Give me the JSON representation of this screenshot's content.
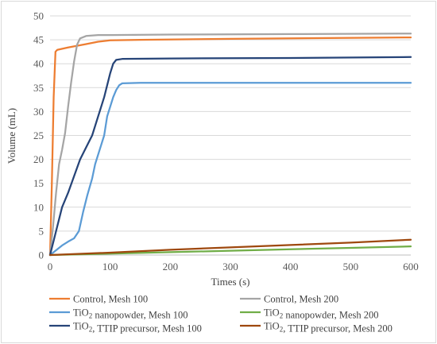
{
  "chart_data": {
    "type": "line",
    "title": "",
    "xlabel": "Times (s)",
    "ylabel": "Volume (mL)",
    "xlim": [
      0,
      600
    ],
    "ylim": [
      0,
      50
    ],
    "xticks": [
      0,
      100,
      200,
      300,
      400,
      500,
      600
    ],
    "yticks": [
      0,
      5,
      10,
      15,
      20,
      25,
      30,
      35,
      40,
      45,
      50
    ],
    "grid": "horizontal",
    "legend_position": "bottom",
    "series": [
      {
        "name": "Control, Mesh 100",
        "legend_parts": [
          {
            "t": "Control, Mesh 100"
          }
        ],
        "color": "#ED7D31",
        "points": [
          [
            0,
            0
          ],
          [
            3,
            15
          ],
          [
            6,
            33
          ],
          [
            9,
            42.5
          ],
          [
            12,
            42.9
          ],
          [
            30,
            43.4
          ],
          [
            60,
            44.1
          ],
          [
            80,
            44.6
          ],
          [
            100,
            44.9
          ],
          [
            150,
            45.0
          ],
          [
            300,
            45.2
          ],
          [
            600,
            45.5
          ]
        ]
      },
      {
        "name": "Control, Mesh 200",
        "legend_parts": [
          {
            "t": "Control, Mesh 200"
          }
        ],
        "color": "#A5A5A5",
        "points": [
          [
            0,
            0
          ],
          [
            5,
            6
          ],
          [
            10,
            13
          ],
          [
            15,
            19
          ],
          [
            20,
            22
          ],
          [
            25,
            25.5
          ],
          [
            30,
            31
          ],
          [
            35,
            36
          ],
          [
            40,
            40.5
          ],
          [
            45,
            44
          ],
          [
            50,
            45.3
          ],
          [
            60,
            45.8
          ],
          [
            80,
            46.0
          ],
          [
            100,
            46.0
          ],
          [
            200,
            46.1
          ],
          [
            400,
            46.2
          ],
          [
            600,
            46.3
          ]
        ]
      },
      {
        "name": "TiO2 nanopowder, Mesh 100",
        "legend_parts": [
          {
            "t": "TiO"
          },
          {
            "t": "2",
            "sub": true
          },
          {
            "t": " nanopowder, Mesh 100"
          }
        ],
        "color": "#5B9BD5",
        "points": [
          [
            0,
            0
          ],
          [
            10,
            1
          ],
          [
            20,
            2
          ],
          [
            30,
            2.8
          ],
          [
            40,
            3.5
          ],
          [
            48,
            5
          ],
          [
            55,
            9
          ],
          [
            62,
            12.5
          ],
          [
            70,
            16
          ],
          [
            75,
            19
          ],
          [
            80,
            21
          ],
          [
            85,
            23
          ],
          [
            90,
            25
          ],
          [
            95,
            29
          ],
          [
            100,
            31
          ],
          [
            105,
            33
          ],
          [
            110,
            34.5
          ],
          [
            115,
            35.5
          ],
          [
            120,
            35.9
          ],
          [
            150,
            36.0
          ],
          [
            300,
            36.0
          ],
          [
            600,
            36.0
          ]
        ]
      },
      {
        "name": "TiO2 nanopowder, Mesh 200",
        "legend_parts": [
          {
            "t": "TiO"
          },
          {
            "t": "2",
            "sub": true
          },
          {
            "t": " nanopowder, Mesh 200"
          }
        ],
        "color": "#70AD47",
        "points": [
          [
            0,
            0
          ],
          [
            100,
            0.3
          ],
          [
            200,
            0.6
          ],
          [
            300,
            0.9
          ],
          [
            400,
            1.2
          ],
          [
            500,
            1.5
          ],
          [
            600,
            1.8
          ]
        ]
      },
      {
        "name": "TiO2, TTIP precursor, Mesh 100",
        "legend_parts": [
          {
            "t": "TiO"
          },
          {
            "t": "2",
            "sub": true
          },
          {
            "t": ", TTIP precursor, Mesh 100"
          }
        ],
        "color": "#264478",
        "points": [
          [
            0,
            0
          ],
          [
            10,
            5
          ],
          [
            20,
            10
          ],
          [
            30,
            13
          ],
          [
            40,
            16.5
          ],
          [
            50,
            20
          ],
          [
            60,
            22.5
          ],
          [
            70,
            25
          ],
          [
            80,
            29
          ],
          [
            90,
            33
          ],
          [
            95,
            35.5
          ],
          [
            100,
            38
          ],
          [
            105,
            40
          ],
          [
            110,
            40.8
          ],
          [
            120,
            41.0
          ],
          [
            200,
            41.1
          ],
          [
            400,
            41.2
          ],
          [
            600,
            41.4
          ]
        ]
      },
      {
        "name": "TiO2, TTIP precursor, Mesh 200",
        "legend_parts": [
          {
            "t": "TiO"
          },
          {
            "t": "2",
            "sub": true
          },
          {
            "t": ", TTIP precursor, Mesh 200"
          }
        ],
        "color": "#9E480E",
        "points": [
          [
            0,
            0
          ],
          [
            100,
            0.5
          ],
          [
            200,
            1.1
          ],
          [
            300,
            1.6
          ],
          [
            400,
            2.1
          ],
          [
            500,
            2.6
          ],
          [
            600,
            3.2
          ]
        ]
      }
    ]
  }
}
